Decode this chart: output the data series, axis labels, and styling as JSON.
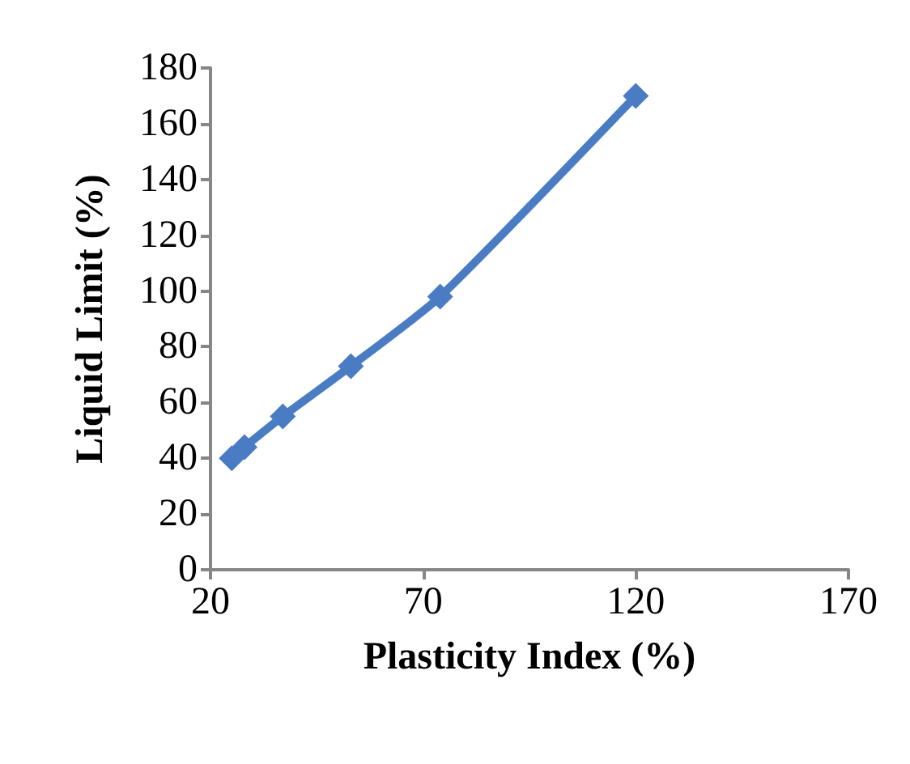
{
  "chart_data": {
    "type": "line",
    "xlabel": "Plasticity Index (%)",
    "ylabel": "Liquid Limit (%)",
    "x": [
      25,
      28,
      37,
      53,
      74,
      120
    ],
    "series": [
      {
        "color": "#4a7cc4",
        "values": [
          40,
          44,
          55,
          73,
          98,
          170
        ]
      }
    ],
    "xlim": [
      20,
      170
    ],
    "xticks": [
      20,
      70,
      120,
      170
    ],
    "ylim": [
      0,
      180
    ],
    "yticks": [
      0,
      20,
      40,
      60,
      80,
      100,
      120,
      140,
      160,
      180
    ],
    "marker": "diamond",
    "line_style": "solid",
    "grid": false
  }
}
